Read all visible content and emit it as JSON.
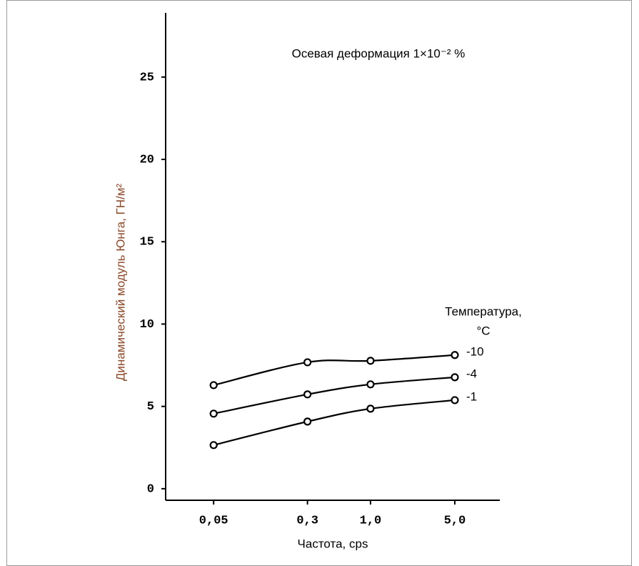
{
  "chart_data": {
    "type": "line",
    "xscale": "log",
    "annotation": "Осевая деформация 1×10⁻² %",
    "xlabel": "Частота, cps",
    "ylabel": "Динамический модуль Юнга, ГН/м²",
    "legend_title": [
      "Температура,",
      "°C"
    ],
    "x": [
      0.05,
      0.3,
      1.0,
      5.0
    ],
    "series": [
      {
        "name": "-10",
        "color": "#000000",
        "values": [
          6.29,
          7.68,
          7.77,
          8.12
        ]
      },
      {
        "name": "-4",
        "color": "#000000",
        "values": [
          4.56,
          5.73,
          6.34,
          6.77
        ]
      },
      {
        "name": "-1",
        "color": "#000000",
        "values": [
          2.65,
          4.08,
          4.86,
          5.38
        ]
      }
    ],
    "xlim": [
      0.02,
      11.8
    ],
    "xticks": [
      {
        "value": 0.05,
        "label": "0,05"
      },
      {
        "value": 0.3,
        "label": "0,3"
      },
      {
        "value": 1.0,
        "label": "1,0"
      },
      {
        "value": 5.0,
        "label": "5,0"
      }
    ],
    "ylim": [
      -0.7,
      28.9
    ],
    "yticks": [
      0,
      5,
      10,
      15,
      20,
      25
    ],
    "grid": false
  }
}
